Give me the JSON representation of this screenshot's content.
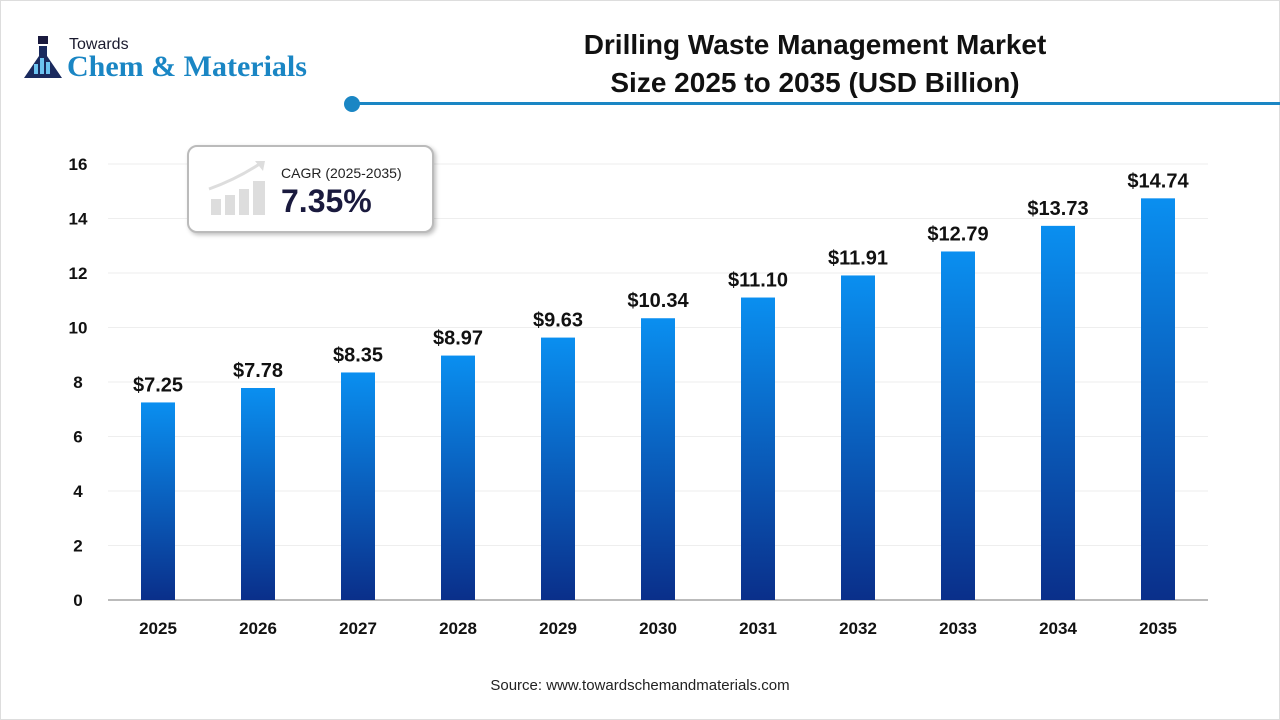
{
  "logo": {
    "line1": "Towards",
    "line2": "Chem & Materials"
  },
  "cagr": {
    "label": "CAGR (2025-2035)",
    "value": "7.35%"
  },
  "source": "Source: www.towardschemandmaterials.com",
  "colors": {
    "bar_top": "#0a8ff0",
    "bar_bottom": "#0a2f8a",
    "accent": "#1a86c4"
  },
  "chart_data": {
    "type": "bar",
    "title": "Drilling Waste Management Market Size 2025 to 2035 (USD Billion)",
    "title_lines": [
      "Drilling Waste Management Market",
      "Size 2025 to 2035 (USD Billion)"
    ],
    "categories": [
      "2025",
      "2026",
      "2027",
      "2028",
      "2029",
      "2030",
      "2031",
      "2032",
      "2033",
      "2034",
      "2035"
    ],
    "values": [
      7.25,
      7.78,
      8.35,
      8.97,
      9.63,
      10.34,
      11.1,
      11.91,
      12.79,
      13.73,
      14.74
    ],
    "data_labels": [
      "$7.25",
      "$7.78",
      "$8.35",
      "$8.97",
      "$9.63",
      "$10.34",
      "$11.10",
      "$11.91",
      "$12.79",
      "$13.73",
      "$14.74"
    ],
    "yticks": [
      0,
      2,
      4,
      6,
      8,
      10,
      12,
      14,
      16
    ],
    "ylim": [
      0,
      16
    ],
    "grid": true,
    "xlabel": "",
    "ylabel": ""
  }
}
